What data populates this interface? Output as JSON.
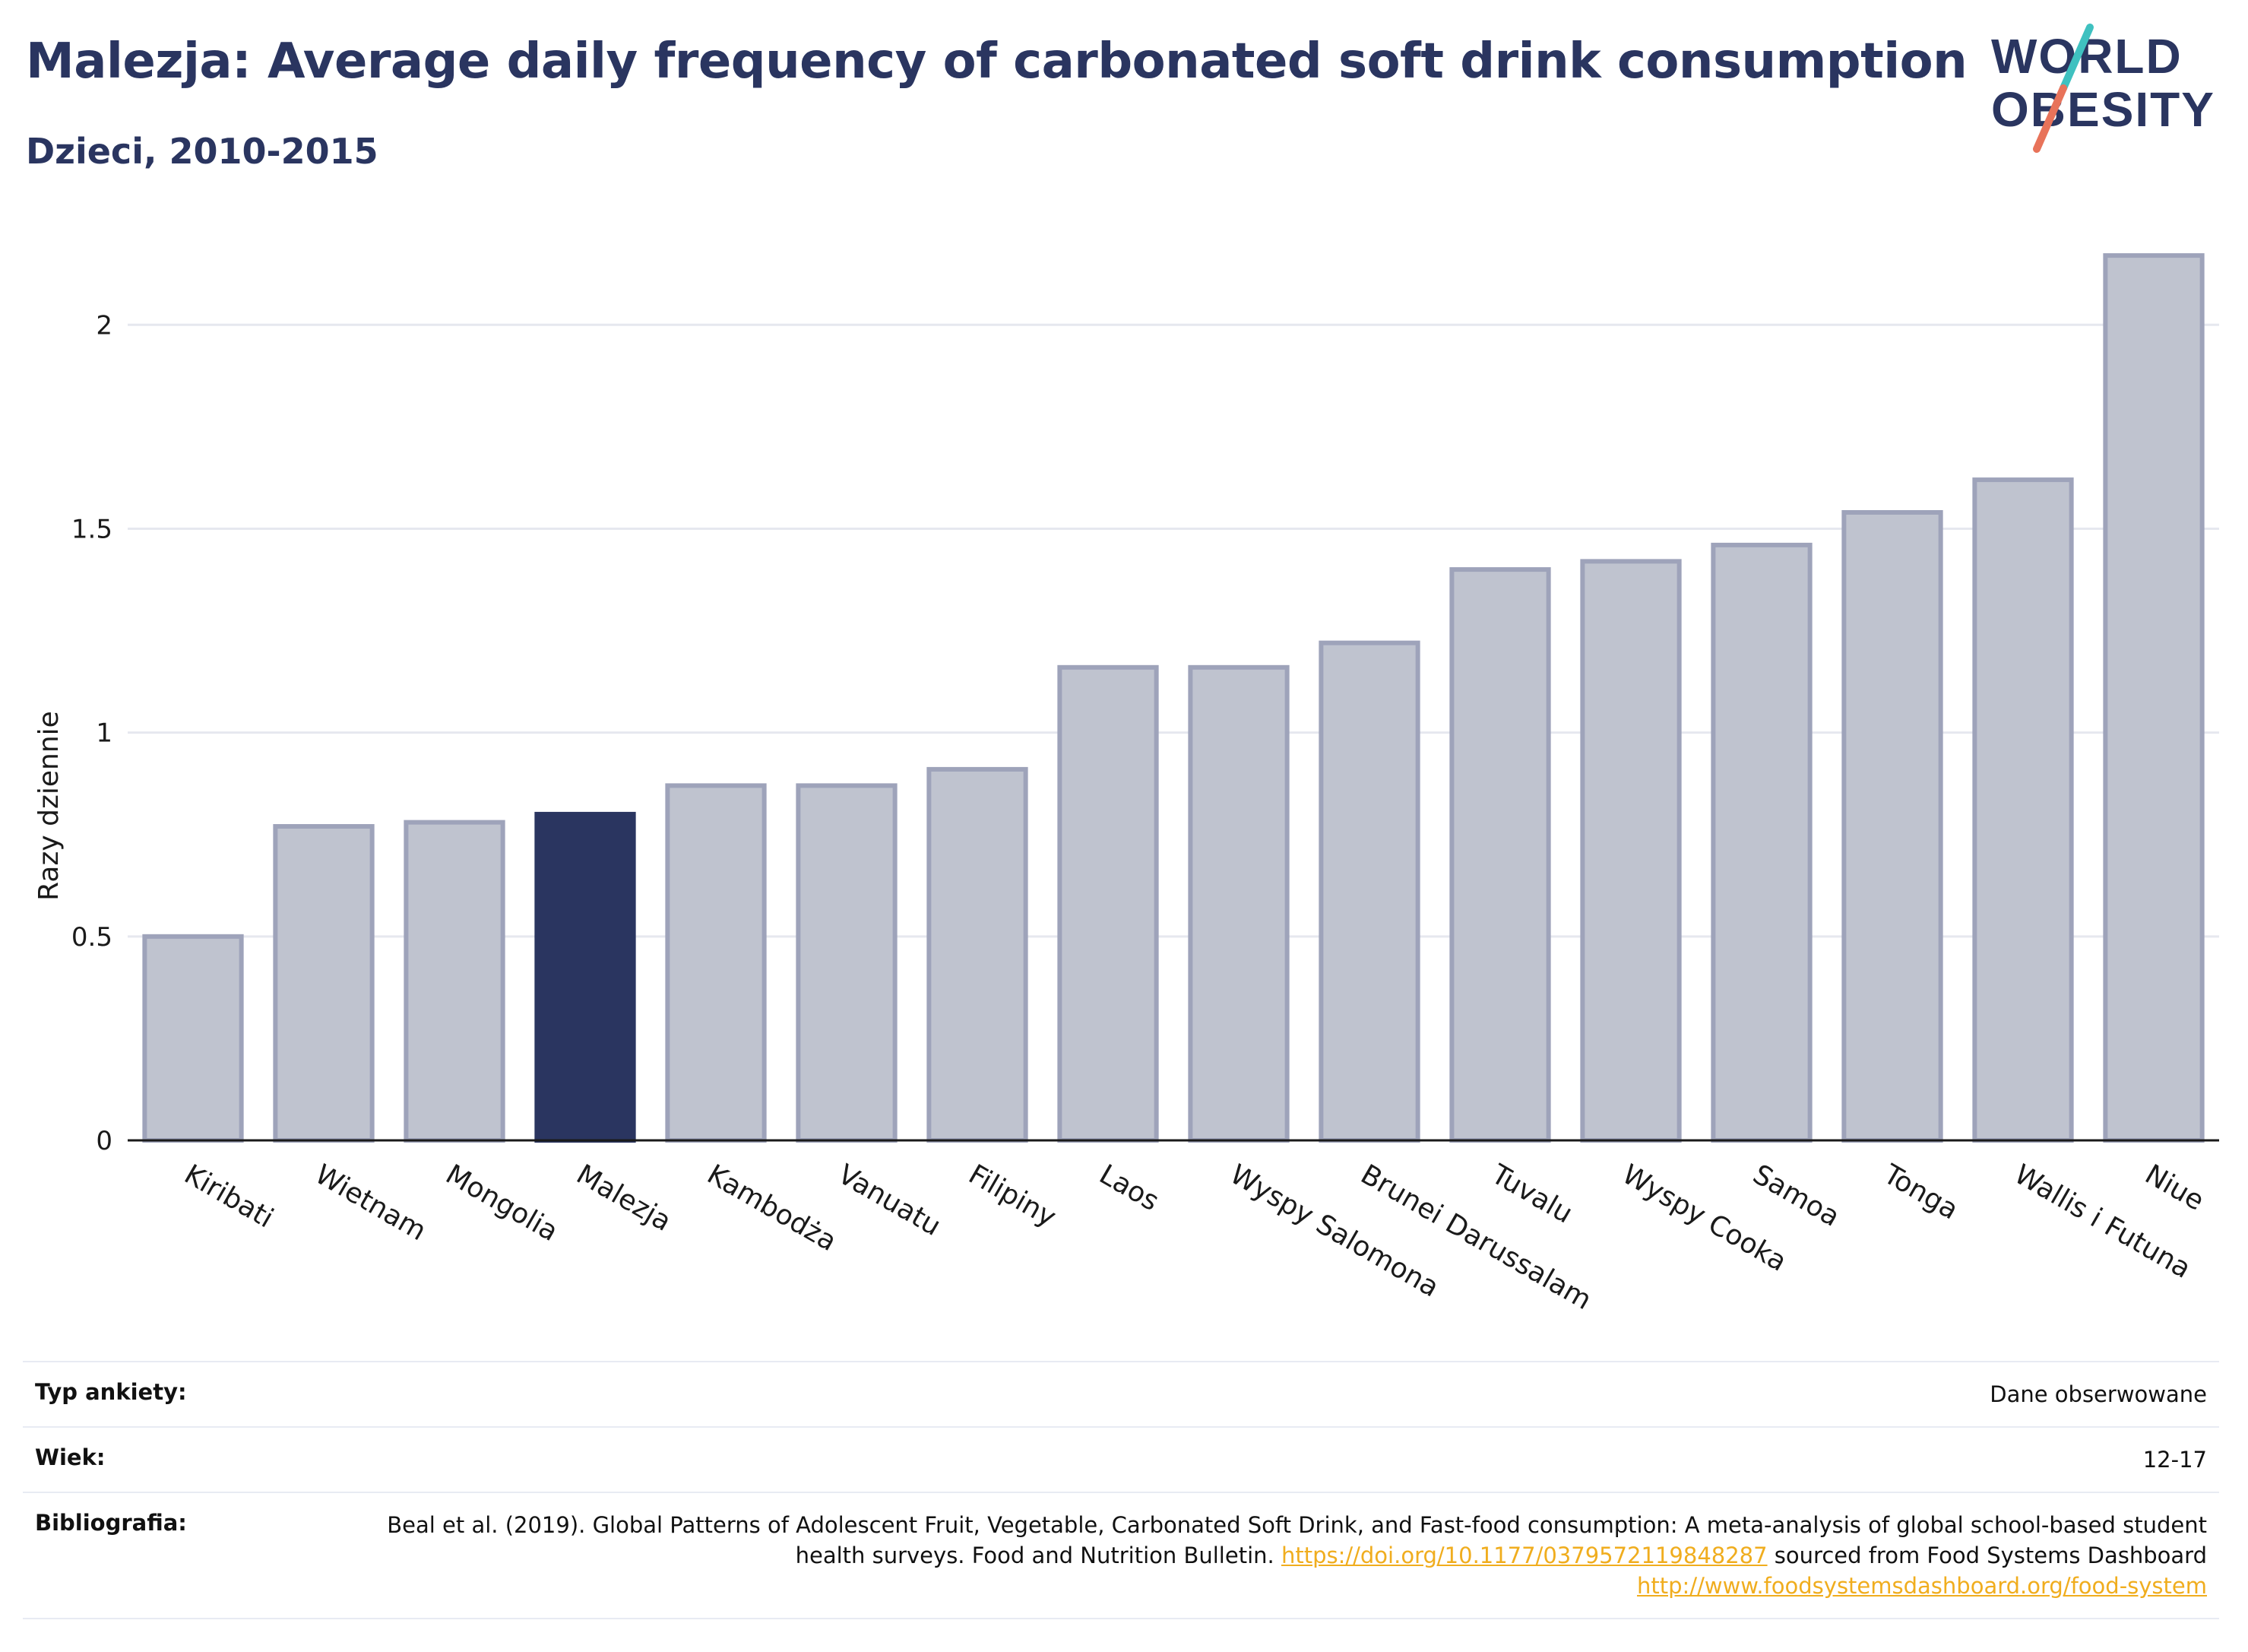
{
  "header": {
    "title": "Malezja: Average daily frequency of carbonated soft drink consumption",
    "subtitle": "Dzieci, 2010-2015"
  },
  "logo": {
    "line1": "WORLD",
    "line2": "OBESITY",
    "slash_top_color": "#3fc1c0",
    "slash_bottom_color": "#e8735a",
    "text_color": "#2a3560"
  },
  "chart_data": {
    "type": "bar",
    "title": "Malezja: Average daily frequency of carbonated soft drink consumption",
    "subtitle": "Dzieci, 2010-2015",
    "xlabel": "",
    "ylabel": "Razy dziennie",
    "ylim": [
      0,
      2.2
    ],
    "yticks": [
      0,
      0.5,
      1,
      1.5,
      2
    ],
    "ytick_labels": [
      "0",
      "0.5",
      "1",
      "1.5",
      "2"
    ],
    "grid": true,
    "highlight": "Malezja",
    "colors": {
      "default_fill": "#bfc3cf",
      "default_stroke": "#9ea3ba",
      "highlight_fill": "#2a3560"
    },
    "categories": [
      "Kiribati",
      "Wietnam",
      "Mongolia",
      "Malezja",
      "Kambodża",
      "Vanuatu",
      "Filipiny",
      "Laos",
      "Wyspy Salomona",
      "Brunei Darussalam",
      "Tuvalu",
      "Wyspy Cooka",
      "Samoa",
      "Tonga",
      "Wallis i Futuna",
      "Niue"
    ],
    "values": [
      0.5,
      0.77,
      0.78,
      0.8,
      0.87,
      0.87,
      0.91,
      1.16,
      1.16,
      1.22,
      1.4,
      1.42,
      1.46,
      1.54,
      1.62,
      2.17
    ]
  },
  "info_table": {
    "rows": [
      {
        "label": "Typ ankiety:",
        "value": "Dane obserwowane"
      },
      {
        "label": "Wiek:",
        "value": "12-17"
      }
    ],
    "bibliography": {
      "label": "Bibliografia:",
      "text_1": "Beal et al. (2019). Global Patterns of Adolescent Fruit, Vegetable, Carbonated Soft Drink, and Fast-food consumption: A meta-analysis of global school-based student health surveys. Food and Nutrition Bulletin.",
      "link_1": "https://doi.org/10.1177/0379572119848287",
      "text_2": "sourced from Food Systems Dashboard",
      "link_2": "http://www.foodsystemsdashboard.org/food-system"
    }
  }
}
